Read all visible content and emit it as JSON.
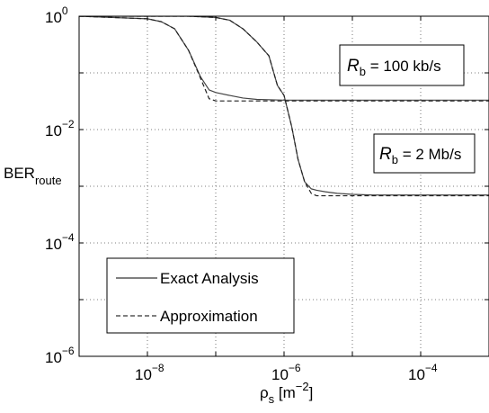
{
  "chart_data": {
    "type": "line",
    "xscale": "log",
    "yscale": "log",
    "xlim": [
      1e-09,
      0.001
    ],
    "ylim": [
      1e-06,
      1
    ],
    "grid": true,
    "grid_style": "dotted",
    "xlabel": {
      "base": "ρ",
      "sub": "s",
      "rest": " [m",
      "sup": "−2",
      "close": "]"
    },
    "ylabel": {
      "base": "BER",
      "sub": "route"
    },
    "xticks": [
      {
        "value": 1e-08,
        "base": "10",
        "exp": "−8"
      },
      {
        "value": 1e-06,
        "base": "10",
        "exp": "−6"
      },
      {
        "value": 0.0001,
        "base": "10",
        "exp": "−4"
      }
    ],
    "yticks": [
      {
        "value": 1,
        "base": "10",
        "exp": "0"
      },
      {
        "value": 0.01,
        "base": "10",
        "exp": "−2"
      },
      {
        "value": 0.0001,
        "base": "10",
        "exp": "−4"
      },
      {
        "value": 1e-06,
        "base": "10",
        "exp": "−6"
      }
    ],
    "legend": {
      "placement": "lower-left",
      "entries": [
        {
          "label": "Exact Analysis",
          "style": "solid"
        },
        {
          "label": "Approximation",
          "style": "dashed"
        }
      ]
    },
    "annotations": [
      {
        "italic": "R",
        "sub": "b",
        "text": " = 100 kb/s"
      },
      {
        "italic": "R",
        "sub": "b",
        "text": " = 2 Mb/s"
      }
    ],
    "series": [
      {
        "style": "solid",
        "x": [
          1e-09,
          1e-08,
          1.6e-08,
          2.5e-08,
          4e-08,
          6e-08,
          8e-08,
          1e-07,
          1.6e-07,
          2.5e-07,
          4e-07,
          1e-06,
          0.0001,
          0.001
        ],
        "y": [
          1,
          0.9,
          0.8,
          0.6,
          0.25,
          0.085,
          0.05,
          0.045,
          0.04,
          0.036,
          0.034,
          0.033,
          0.033,
          0.033
        ]
      },
      {
        "style": "dashed",
        "x": [
          1e-09,
          1e-08,
          1.6e-08,
          2.5e-08,
          4e-08,
          6e-08,
          8e-08,
          1e-07,
          2e-07,
          1e-06,
          0.0001,
          0.001
        ],
        "y": [
          1,
          0.9,
          0.8,
          0.6,
          0.25,
          0.08,
          0.035,
          0.032,
          0.032,
          0.032,
          0.032,
          0.032
        ]
      },
      {
        "style": "solid",
        "x": [
          1e-09,
          4e-08,
          1e-07,
          1.6e-07,
          2.5e-07,
          4e-07,
          6e-07,
          8e-07,
          1e-06,
          1.3e-06,
          1.6e-06,
          2e-06,
          2.5e-06,
          3e-06,
          4e-06,
          6e-06,
          1e-05,
          2e-05,
          0.001
        ],
        "y": [
          1,
          1,
          0.95,
          0.85,
          0.6,
          0.35,
          0.2,
          0.06,
          0.04,
          0.011,
          0.003,
          0.0012,
          0.0009,
          0.00085,
          0.0008,
          0.00075,
          0.00072,
          0.0007,
          0.0007
        ]
      },
      {
        "style": "dashed",
        "x": [
          1e-09,
          4e-08,
          1e-07,
          1.6e-07,
          2.5e-07,
          4e-07,
          6e-07,
          8e-07,
          1e-06,
          1.3e-06,
          1.6e-06,
          2e-06,
          2.5e-06,
          3e-06,
          1e-05,
          0.001
        ],
        "y": [
          1,
          1,
          0.95,
          0.85,
          0.6,
          0.35,
          0.2,
          0.06,
          0.04,
          0.011,
          0.003,
          0.0012,
          0.00075,
          0.00068,
          0.00068,
          0.00068
        ]
      }
    ]
  }
}
